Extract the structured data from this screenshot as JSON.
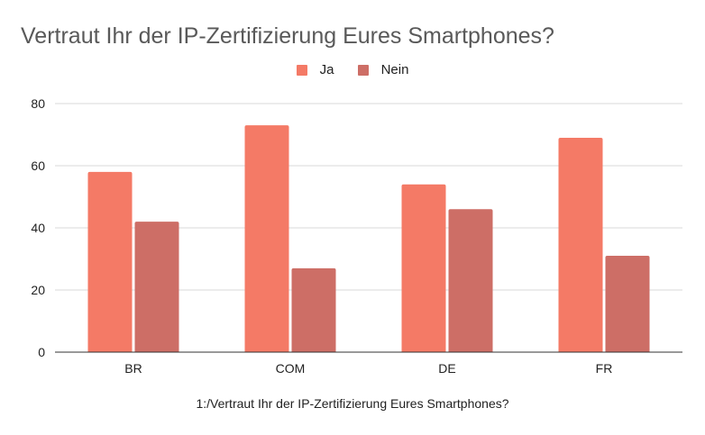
{
  "chart_data": {
    "type": "bar",
    "title": "Vertraut Ihr der IP-Zertifizierung Eures Smartphones?",
    "xlabel": "1:/Vertraut Ihr der IP-Zertifizierung Eures Smartphones?",
    "ylabel": "",
    "categories": [
      "BR",
      "COM",
      "DE",
      "FR"
    ],
    "series": [
      {
        "name": "Ja",
        "color": "#f47a66",
        "values": [
          58,
          73,
          54,
          69
        ]
      },
      {
        "name": "Nein",
        "color": "#cd6e66",
        "values": [
          42,
          27,
          46,
          31
        ]
      }
    ],
    "ylim": [
      0,
      80
    ],
    "yticks": [
      "0",
      "20",
      "40",
      "60",
      "80"
    ],
    "grid": true,
    "legend_position": "top-center"
  }
}
